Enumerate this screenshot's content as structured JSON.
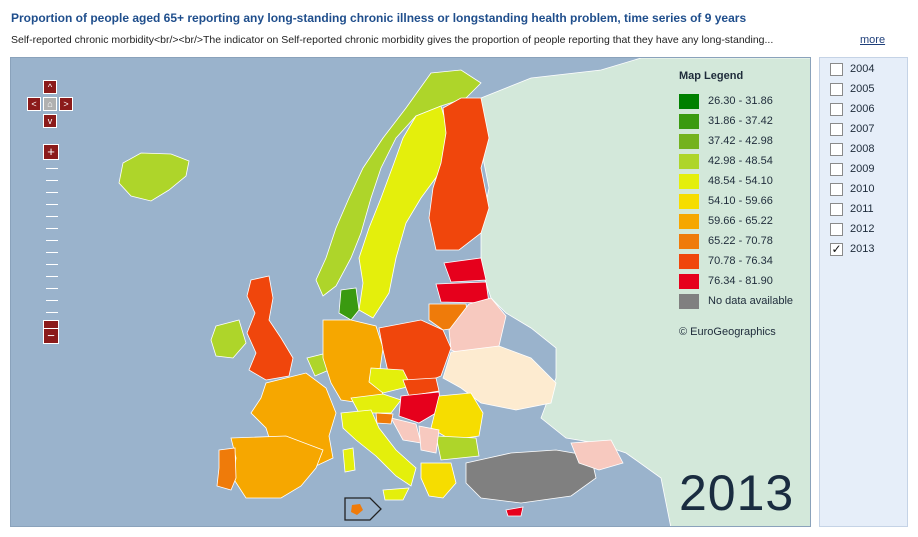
{
  "header": {
    "title": "Proportion of people aged 65+ reporting any long-standing chronic illness or longstanding health problem, time series of 9 years",
    "subtitle": "Self-reported chronic morbidity<br/><br/>The indicator on  Self-reported chronic morbidity  gives the proportion of people reporting that they have any long-standing...",
    "more_label": "more"
  },
  "map": {
    "nav": {
      "up": "^",
      "down": "v",
      "left": "<",
      "right": ">",
      "home": "⌂",
      "zoom_in": "+",
      "zoom_out": "−"
    },
    "selected_year": "2013",
    "copyright": "© EuroGeographics",
    "colors": {
      "sea": "#9ab3cc",
      "non_eu": "#d3e8da",
      "no_data": "#808080"
    }
  },
  "legend": {
    "title": "Map Legend",
    "items": [
      {
        "label": "26.30 - 31.86",
        "color": "#008000"
      },
      {
        "label": "31.86 - 37.42",
        "color": "#3a9a10"
      },
      {
        "label": "37.42 - 42.98",
        "color": "#74b21e"
      },
      {
        "label": "42.98 - 48.54",
        "color": "#aed52a"
      },
      {
        "label": "48.54 - 54.10",
        "color": "#e4ef0c"
      },
      {
        "label": "54.10 - 59.66",
        "color": "#f6dd00"
      },
      {
        "label": "59.66 - 65.22",
        "color": "#f6a700"
      },
      {
        "label": "65.22 - 70.78",
        "color": "#ef7b0a"
      },
      {
        "label": "70.78 - 76.34",
        "color": "#f0460c"
      },
      {
        "label": "76.34 - 81.90",
        "color": "#e6001c"
      },
      {
        "label": "No data available",
        "color": "#808080"
      }
    ]
  },
  "years": {
    "items": [
      {
        "label": "2004",
        "checked": false
      },
      {
        "label": "2005",
        "checked": false
      },
      {
        "label": "2006",
        "checked": false
      },
      {
        "label": "2007",
        "checked": false
      },
      {
        "label": "2008",
        "checked": false
      },
      {
        "label": "2009",
        "checked": false
      },
      {
        "label": "2010",
        "checked": false
      },
      {
        "label": "2011",
        "checked": false
      },
      {
        "label": "2012",
        "checked": false
      },
      {
        "label": "2013",
        "checked": true
      }
    ]
  }
}
